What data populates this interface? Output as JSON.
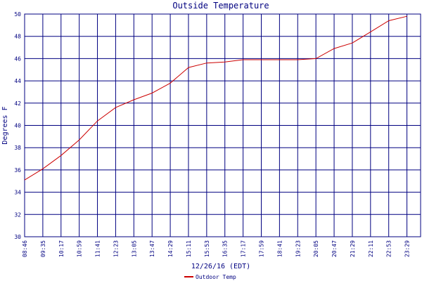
{
  "chart_data": {
    "type": "line",
    "title": "Outside Temperature",
    "xlabel": "12/26/16 (EDT)",
    "ylabel": "Degrees F",
    "ylim": [
      30,
      50
    ],
    "yticks": [
      "30",
      "32",
      "34",
      "36",
      "38",
      "40",
      "42",
      "44",
      "46",
      "48",
      "50"
    ],
    "xticks": [
      "08:46",
      "09:35",
      "10:17",
      "10:59",
      "11:41",
      "12:23",
      "13:05",
      "13:47",
      "14:29",
      "15:11",
      "15:53",
      "16:35",
      "17:17",
      "17:59",
      "18:41",
      "19:23",
      "20:05",
      "20:47",
      "21:29",
      "22:11",
      "22:53",
      "23:29"
    ],
    "grid": true,
    "legend_placement": "bottom-center",
    "colors": {
      "line": "#cc0000",
      "grid": "#000080",
      "text": "#000080"
    },
    "series": [
      {
        "name": "Outdoor Temp",
        "x": [
          "08:46",
          "09:35",
          "10:17",
          "10:59",
          "11:41",
          "12:23",
          "13:05",
          "13:47",
          "14:29",
          "15:11",
          "15:53",
          "16:35",
          "17:17",
          "17:59",
          "18:41",
          "19:23",
          "20:05",
          "20:47",
          "21:29",
          "22:11",
          "22:53",
          "23:29"
        ],
        "values": [
          35.1,
          36.1,
          37.3,
          38.7,
          40.4,
          41.6,
          42.3,
          42.9,
          43.8,
          45.2,
          45.6,
          45.7,
          45.9,
          45.9,
          45.9,
          45.9,
          46.0,
          46.9,
          47.4,
          48.4,
          49.4,
          49.8
        ]
      }
    ]
  }
}
